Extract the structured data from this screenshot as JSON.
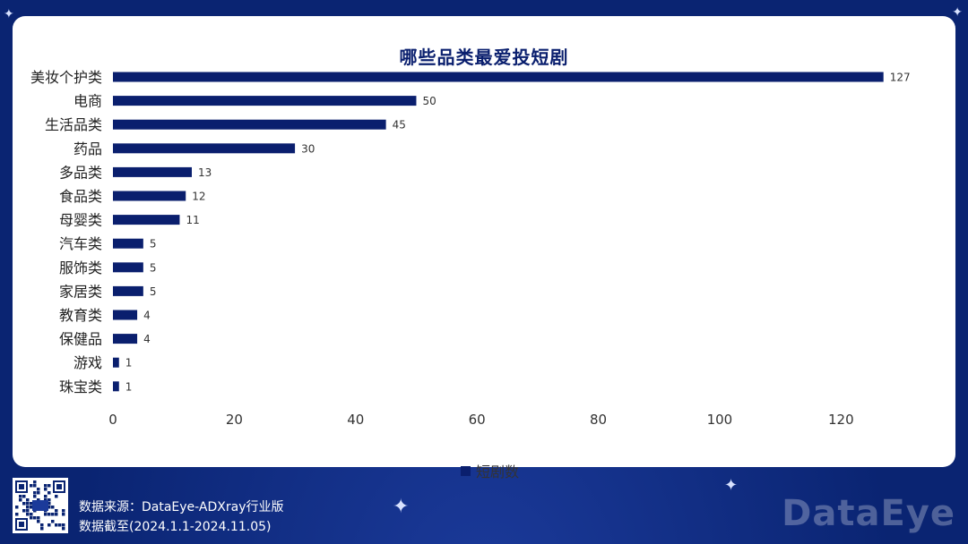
{
  "chart_data": {
    "type": "bar",
    "orientation": "horizontal",
    "title": "哪些品类最爱投短剧",
    "categories": [
      "美妆个护类",
      "电商",
      "生活品类",
      "药品",
      "多品类",
      "食品类",
      "母婴类",
      "汽车类",
      "服饰类",
      "家居类",
      "教育类",
      "保健品",
      "游戏",
      "珠宝类"
    ],
    "series": [
      {
        "name": "短剧数",
        "values": [
          127,
          50,
          45,
          30,
          13,
          12,
          11,
          5,
          5,
          5,
          4,
          4,
          1,
          1
        ]
      }
    ],
    "xlim": [
      0,
      130
    ],
    "xticks": [
      0,
      20,
      40,
      60,
      80,
      100,
      120
    ],
    "grid": false,
    "legend_position": "bottom",
    "bar_color": "#0a1f6e",
    "data_labels": true
  },
  "footer": {
    "source_line": "数据来源：DataEye-ADXray行业版",
    "date_line": "数据截至(2024.1.1-2024.11.05)",
    "brand": "DataEye",
    "qr_label": "DataEye"
  },
  "colors": {
    "background": "#0a2472",
    "card": "#ffffff",
    "bar": "#0a1f6e"
  }
}
